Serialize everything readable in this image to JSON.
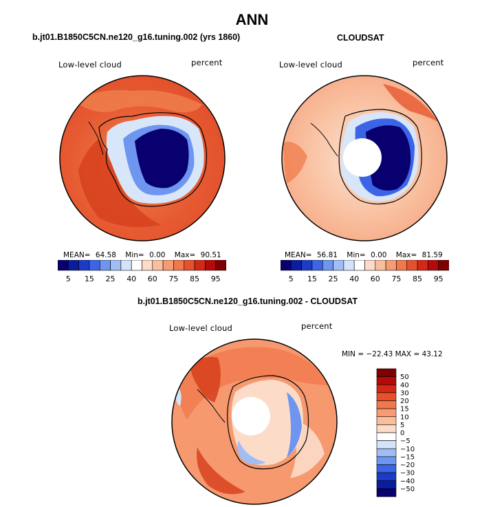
{
  "title": "ANN",
  "panels": [
    {
      "title": "b.jt01.B1850C5CN.ne120_g16.tuning.002 (yrs 1860)",
      "variable": "Low-level cloud",
      "units": "percent",
      "stats": {
        "mean_label": "MEAN=",
        "mean": "64.58",
        "min_label": "Min=",
        "min": "0.00",
        "max_label": "Max=",
        "max": "90.51"
      }
    },
    {
      "title": "CLOUDSAT",
      "variable": "Low-level cloud",
      "units": "percent",
      "stats": {
        "mean_label": "MEAN=",
        "mean": "56.81",
        "min_label": "Min=",
        "min": "0.00",
        "max_label": "Max=",
        "max": "81.59"
      }
    },
    {
      "title": "b.jt01.B1850C5CN.ne120_g16.tuning.002 - CLOUDSAT",
      "variable": "Low-level cloud",
      "units": "percent",
      "stats": {
        "text": "MIN = −22.43 MAX =  43.12"
      }
    }
  ],
  "colorbar_abs": {
    "colors": [
      "#08006e",
      "#0a1ca0",
      "#1c3cc8",
      "#3c64e6",
      "#6e96f0",
      "#a0bef5",
      "#d2e3fa",
      "#ffffff",
      "#fcdcc8",
      "#fabe9c",
      "#f69b73",
      "#f0784b",
      "#e6502d",
      "#d22814",
      "#b40a0a",
      "#800000"
    ],
    "labels": [
      "5",
      "15",
      "25",
      "40",
      "60",
      "75",
      "85",
      "95"
    ]
  },
  "colorbar_diff": {
    "colors": [
      "#800000",
      "#b40a0a",
      "#d22814",
      "#e6502d",
      "#f0784b",
      "#f69b73",
      "#fabe9c",
      "#fcdcc8",
      "#ffffff",
      "#d2e3fa",
      "#a0bef5",
      "#6e96f0",
      "#3c64e6",
      "#1c3cc8",
      "#0a1ca0",
      "#08006e"
    ],
    "labels": [
      "50",
      "40",
      "30",
      "20",
      "15",
      "10",
      "5",
      "0",
      "−5",
      "−10",
      "−15",
      "−20",
      "−30",
      "−40",
      "−50"
    ]
  },
  "map_colors": {
    "ocean_high": "#e14e2a",
    "ocean_mid": "#f0804f",
    "ocean_light": "#f9c0a0",
    "pale": "#fde4d4",
    "ice_dark": "#07006e",
    "ice_mid": "#3c64e6",
    "ice_light": "#a0bef5",
    "ice_pale": "#d8e6fa",
    "hole": "#ffffff",
    "coast": "#000000"
  }
}
